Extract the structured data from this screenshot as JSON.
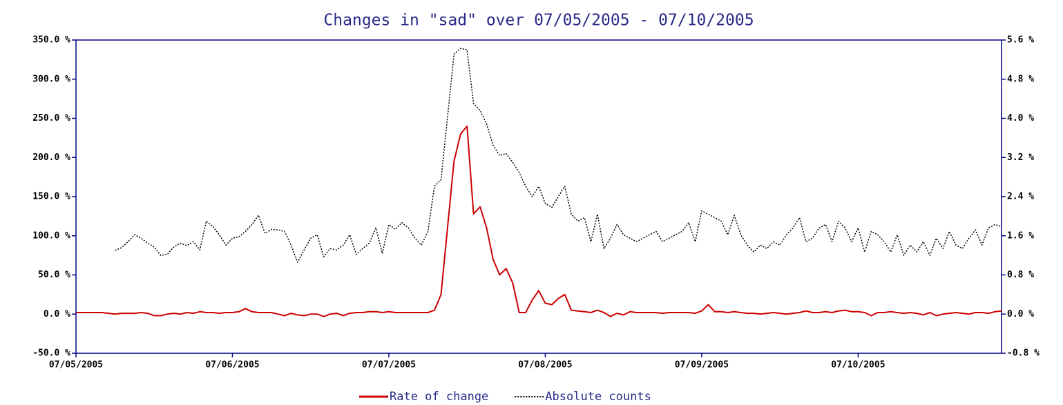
{
  "chart_data": {
    "type": "line",
    "title": "Changes in \"sad\" over 07/05/2005 - 07/10/2005",
    "x": [
      0,
      1,
      2,
      3,
      4,
      5,
      6,
      7,
      8,
      9,
      10,
      11,
      12,
      13,
      14,
      15,
      16,
      17,
      18,
      19,
      20,
      21,
      22,
      23,
      24,
      25,
      26,
      27,
      28,
      29,
      30,
      31,
      32,
      33,
      34,
      35,
      36,
      37,
      38,
      39,
      40,
      41,
      42,
      43,
      44,
      45,
      46,
      47,
      48,
      49,
      50,
      51,
      52,
      53,
      54,
      55,
      56,
      57,
      58,
      59,
      60,
      61,
      62,
      63,
      64,
      65,
      66,
      67,
      68,
      69,
      70,
      71,
      72,
      73,
      74,
      75,
      76,
      77,
      78,
      79,
      80,
      81,
      82,
      83,
      84,
      85,
      86,
      87,
      88,
      89,
      90,
      91,
      92,
      93,
      94,
      95,
      96,
      97,
      98,
      99,
      100,
      101,
      102,
      103,
      104,
      105,
      106,
      107,
      108,
      109,
      110,
      111,
      112,
      113,
      114,
      115,
      116,
      117,
      118,
      119,
      120,
      121,
      122,
      123,
      124,
      125,
      126,
      127,
      128,
      129,
      130,
      131,
      132,
      133,
      134,
      135,
      136,
      137,
      138,
      139,
      140,
      141,
      142
    ],
    "xlim": [
      0,
      142
    ],
    "xticks": [
      {
        "value": 0,
        "label": "07/05/2005"
      },
      {
        "value": 24,
        "label": "07/06/2005"
      },
      {
        "value": 48,
        "label": "07/07/2005"
      },
      {
        "value": 72,
        "label": "07/08/2005"
      },
      {
        "value": 96,
        "label": "07/09/2005"
      },
      {
        "value": 120,
        "label": "07/10/2005"
      }
    ],
    "ylim": [
      -50,
      350
    ],
    "yticks": [
      {
        "value": -50,
        "label": "-50.0 %"
      },
      {
        "value": 0,
        "label": "0.0 %"
      },
      {
        "value": 50,
        "label": "50.0 %"
      },
      {
        "value": 100,
        "label": "100.0 %"
      },
      {
        "value": 150,
        "label": "150.0 %"
      },
      {
        "value": 200,
        "label": "200.0 %"
      },
      {
        "value": 250,
        "label": "250.0 %"
      },
      {
        "value": 300,
        "label": "300.0 %"
      },
      {
        "value": 350,
        "label": "350.0 %"
      }
    ],
    "y2lim": [
      -0.8,
      5.6
    ],
    "y2ticks": [
      {
        "value": -0.8,
        "label": "-0.8 %"
      },
      {
        "value": 0,
        "label": "0.0 %"
      },
      {
        "value": 0.8,
        "label": "0.8 %"
      },
      {
        "value": 1.6,
        "label": "1.6 %"
      },
      {
        "value": 2.4,
        "label": "2.4 %"
      },
      {
        "value": 3.2,
        "label": "3.2 %"
      },
      {
        "value": 4.0,
        "label": "4.0 %"
      },
      {
        "value": 4.8,
        "label": "4.8 %"
      },
      {
        "value": 5.6,
        "label": "5.6 %"
      }
    ],
    "legend": "bottom",
    "series": [
      {
        "name": "Rate of change",
        "color": "#cc0000",
        "style": "solid",
        "values": [
          2,
          2,
          2,
          2,
          2,
          1,
          0,
          1,
          1,
          1,
          2,
          1,
          -2,
          -2,
          0,
          1,
          0,
          2,
          1,
          3,
          2,
          2,
          1,
          2,
          2,
          3,
          7,
          3,
          2,
          2,
          2,
          0,
          -2,
          1,
          -1,
          -2,
          0,
          0,
          -3,
          0,
          1,
          -2,
          1,
          2,
          2,
          3,
          3,
          2,
          3,
          2,
          2,
          2,
          2,
          2,
          2,
          5,
          25,
          110,
          195,
          230,
          240,
          128,
          137,
          110,
          70,
          50,
          58,
          40,
          2,
          2,
          18,
          30,
          14,
          12,
          20,
          25,
          5,
          4,
          3,
          2,
          5,
          2,
          -3,
          1,
          -1,
          3,
          2,
          2,
          2,
          2,
          1,
          2,
          2,
          2,
          2,
          1,
          4,
          12,
          3,
          3,
          2,
          3,
          2,
          1,
          1,
          0,
          1,
          2,
          1,
          0,
          1,
          2,
          4,
          2,
          2,
          3,
          2,
          4,
          5,
          3,
          3,
          2,
          -2,
          2,
          2,
          3,
          2,
          1,
          2,
          1,
          -1,
          2,
          -2,
          0,
          1,
          2,
          1,
          0,
          2,
          2,
          1,
          3,
          4
        ]
      },
      {
        "name": "Absolute counts",
        "color": "#000000",
        "style": "dotted",
        "axis": "y2",
        "values": [
          null,
          null,
          null,
          null,
          null,
          null,
          1.3,
          1.36,
          1.48,
          1.62,
          1.55,
          1.45,
          1.37,
          1.2,
          1.22,
          1.37,
          1.45,
          1.4,
          1.48,
          1.31,
          1.9,
          1.79,
          1.62,
          1.41,
          1.55,
          1.58,
          1.69,
          1.83,
          2.02,
          1.65,
          1.73,
          1.72,
          1.69,
          1.41,
          1.06,
          1.31,
          1.55,
          1.62,
          1.17,
          1.34,
          1.31,
          1.41,
          1.62,
          1.22,
          1.34,
          1.45,
          1.76,
          1.24,
          1.83,
          1.73,
          1.87,
          1.76,
          1.55,
          1.41,
          1.69,
          2.61,
          2.75,
          4.02,
          5.31,
          5.43,
          5.4,
          4.3,
          4.16,
          3.88,
          3.45,
          3.24,
          3.28,
          3.1,
          2.89,
          2.61,
          2.4,
          2.61,
          2.26,
          2.18,
          2.4,
          2.61,
          2.04,
          1.9,
          1.97,
          1.48,
          2.04,
          1.34,
          1.55,
          1.83,
          1.62,
          1.55,
          1.48,
          1.55,
          1.62,
          1.69,
          1.48,
          1.55,
          1.62,
          1.69,
          1.87,
          1.48,
          2.11,
          2.04,
          1.97,
          1.9,
          1.62,
          2.02,
          1.62,
          1.41,
          1.27,
          1.41,
          1.34,
          1.48,
          1.41,
          1.62,
          1.76,
          1.97,
          1.48,
          1.55,
          1.76,
          1.83,
          1.48,
          1.9,
          1.76,
          1.48,
          1.76,
          1.27,
          1.69,
          1.62,
          1.48,
          1.27,
          1.62,
          1.2,
          1.41,
          1.27,
          1.48,
          1.2,
          1.55,
          1.34,
          1.69,
          1.41,
          1.34,
          1.55,
          1.72,
          1.41,
          1.76,
          1.83,
          1.79
        ]
      }
    ]
  }
}
